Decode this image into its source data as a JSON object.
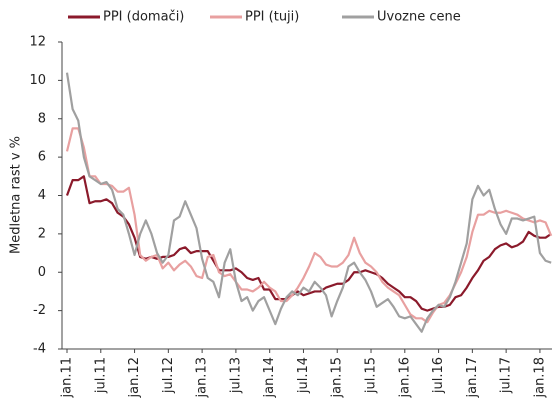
{
  "chart_data": {
    "type": "line",
    "ylabel": "Medletna rast v %",
    "categories": [
      "jan.11",
      null,
      null,
      null,
      null,
      null,
      "jul.11",
      null,
      null,
      null,
      null,
      null,
      "jan.12",
      null,
      null,
      null,
      null,
      null,
      "jul.12",
      null,
      null,
      null,
      null,
      null,
      "jan.13",
      null,
      null,
      null,
      null,
      null,
      "jul.13",
      null,
      null,
      null,
      null,
      null,
      "jan.14",
      null,
      null,
      null,
      null,
      null,
      "jul.14",
      null,
      null,
      null,
      null,
      null,
      "jan.15",
      null,
      null,
      null,
      null,
      null,
      "jul.15",
      null,
      null,
      null,
      null,
      null,
      "jan.16",
      null,
      null,
      null,
      null,
      null,
      "jul.16",
      null,
      null,
      null,
      null,
      null,
      "jan.17",
      null,
      null,
      null,
      null,
      null,
      "jul.17",
      null,
      null,
      null,
      null,
      null,
      "jan.18",
      null,
      null
    ],
    "series": [
      {
        "name": "PPI (domači)",
        "color": "#8b1a2b",
        "values": [
          4.0,
          4.8,
          4.8,
          5.0,
          3.6,
          3.7,
          3.7,
          3.8,
          3.6,
          3.1,
          2.9,
          2.5,
          1.8,
          0.8,
          0.7,
          0.8,
          0.7,
          0.8,
          0.8,
          0.9,
          1.2,
          1.3,
          1.0,
          1.1,
          1.1,
          1.1,
          0.6,
          0.1,
          0.1,
          0.1,
          0.2,
          0.0,
          -0.3,
          -0.4,
          -0.3,
          -0.9,
          -0.9,
          -1.4,
          -1.4,
          -1.4,
          -1.2,
          -1.0,
          -1.2,
          -1.1,
          -1.0,
          -1.0,
          -0.8,
          -0.7,
          -0.6,
          -0.6,
          -0.4,
          0.0,
          0.0,
          0.1,
          0.0,
          -0.1,
          -0.3,
          -0.6,
          -0.8,
          -1.0,
          -1.3,
          -1.3,
          -1.5,
          -1.9,
          -2.0,
          -1.9,
          -1.8,
          -1.8,
          -1.7,
          -1.3,
          -1.2,
          -0.8,
          -0.3,
          0.1,
          0.6,
          0.8,
          1.2,
          1.4,
          1.5,
          1.3,
          1.4,
          1.6,
          2.1,
          1.9,
          1.8,
          1.8,
          2.0
        ]
      },
      {
        "name": "PPI (tuji)",
        "color": "#e8a0a0",
        "values": [
          6.3,
          7.5,
          7.5,
          6.5,
          5.0,
          5.0,
          4.6,
          4.6,
          4.5,
          4.2,
          4.2,
          4.4,
          3.0,
          0.9,
          0.6,
          0.8,
          0.9,
          0.2,
          0.5,
          0.1,
          0.4,
          0.6,
          0.3,
          -0.2,
          -0.3,
          0.8,
          0.9,
          0.0,
          -0.2,
          -0.1,
          -0.5,
          -0.9,
          -0.9,
          -1.0,
          -0.8,
          -0.5,
          -0.8,
          -1.0,
          -1.5,
          -1.5,
          -1.2,
          -0.8,
          -0.3,
          0.3,
          1.0,
          0.8,
          0.4,
          0.3,
          0.3,
          0.5,
          0.9,
          1.8,
          1.0,
          0.5,
          0.3,
          0.0,
          -0.5,
          -0.8,
          -1.0,
          -1.2,
          -1.7,
          -2.2,
          -2.4,
          -2.4,
          -2.6,
          -2.1,
          -1.7,
          -1.6,
          -1.2,
          -0.6,
          0.0,
          0.8,
          2.1,
          3.0,
          3.0,
          3.2,
          3.1,
          3.1,
          3.2,
          3.1,
          3.0,
          2.8,
          2.7,
          2.6,
          2.7,
          2.6,
          1.9
        ]
      },
      {
        "name": "Uvozne cene",
        "color": "#a0a0a0",
        "values": [
          10.4,
          8.5,
          7.9,
          6.0,
          5.0,
          4.8,
          4.6,
          4.7,
          4.3,
          3.3,
          3.0,
          2.0,
          0.9,
          2.0,
          2.7,
          2.0,
          1.0,
          0.5,
          0.9,
          2.7,
          2.9,
          3.7,
          3.0,
          2.3,
          0.7,
          -0.3,
          -0.5,
          -1.3,
          0.5,
          1.2,
          -0.5,
          -1.5,
          -1.3,
          -2.0,
          -1.5,
          -1.3,
          -2.0,
          -2.7,
          -1.9,
          -1.3,
          -1.0,
          -1.2,
          -0.8,
          -1.0,
          -0.5,
          -0.8,
          -1.2,
          -2.3,
          -1.5,
          -0.8,
          0.3,
          0.5,
          0.0,
          -0.4,
          -1.0,
          -1.8,
          -1.6,
          -1.4,
          -1.8,
          -2.3,
          -2.4,
          -2.3,
          -2.7,
          -3.1,
          -2.4,
          -2.0,
          -1.7,
          -1.8,
          -1.3,
          -0.5,
          0.5,
          1.5,
          3.8,
          4.5,
          4.0,
          4.3,
          3.3,
          2.5,
          2.0,
          2.8,
          2.8,
          2.7,
          2.8,
          2.9,
          1.0,
          0.6,
          0.5
        ]
      }
    ],
    "ylim": [
      -4,
      12
    ],
    "yticks": [
      -4,
      -2,
      0,
      2,
      4,
      6,
      8,
      10,
      12
    ],
    "legend": "top"
  }
}
